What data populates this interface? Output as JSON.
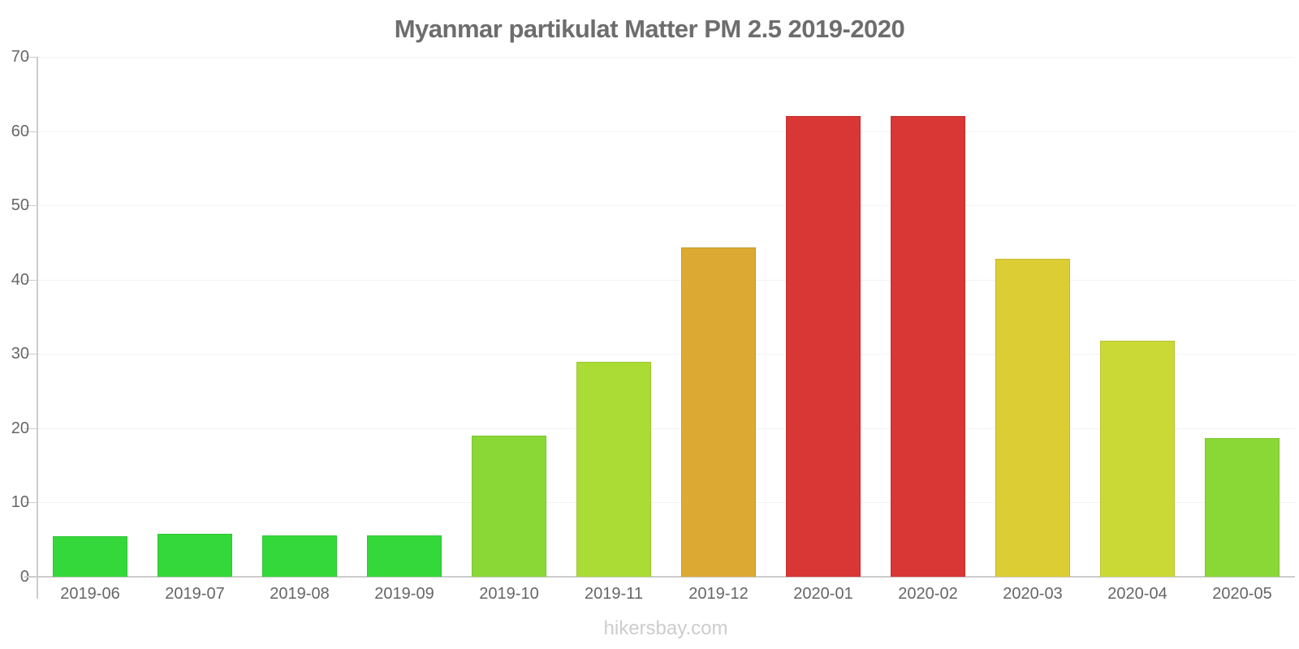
{
  "chart_data": {
    "type": "bar",
    "title": "Myanmar partikulat Matter PM 2.5 2019-2020",
    "categories": [
      "2019-06",
      "2019-07",
      "2019-08",
      "2019-09",
      "2019-10",
      "2019-11",
      "2019-12",
      "2020-01",
      "2020-02",
      "2020-03",
      "2020-04",
      "2020-05"
    ],
    "values": [
      5.5,
      5.8,
      5.6,
      5.6,
      19.0,
      28.9,
      44.3,
      62.0,
      62.0,
      42.8,
      31.8,
      18.7
    ],
    "bar_colors": [
      "#35d83a",
      "#35d83a",
      "#35d83a",
      "#35d83a",
      "#8ad836",
      "#abdc35",
      "#dcaa32",
      "#d93636",
      "#d93636",
      "#dccd34",
      "#cbd937",
      "#8ad836"
    ],
    "bar_border_colors": [
      "#2fc434",
      "#2fc434",
      "#2fc434",
      "#2fc434",
      "#7cc430",
      "#9bc72f",
      "#c6992c",
      "#c53030",
      "#c53030",
      "#c6b92e",
      "#b7c431",
      "#7cc430"
    ],
    "xlabel": "",
    "ylabel": "",
    "ylim": [
      0,
      70
    ],
    "y_ticks": [
      0,
      10,
      20,
      30,
      40,
      50,
      60,
      70
    ],
    "grid": true,
    "legend": "none"
  },
  "axis_style": {
    "gridline_color": "#f3f3f3",
    "axis_line_color": "#cccccc",
    "tick_color": "#cccccc",
    "label_color": "#666666"
  },
  "footer": {
    "watermark": "hikersbay.com"
  }
}
